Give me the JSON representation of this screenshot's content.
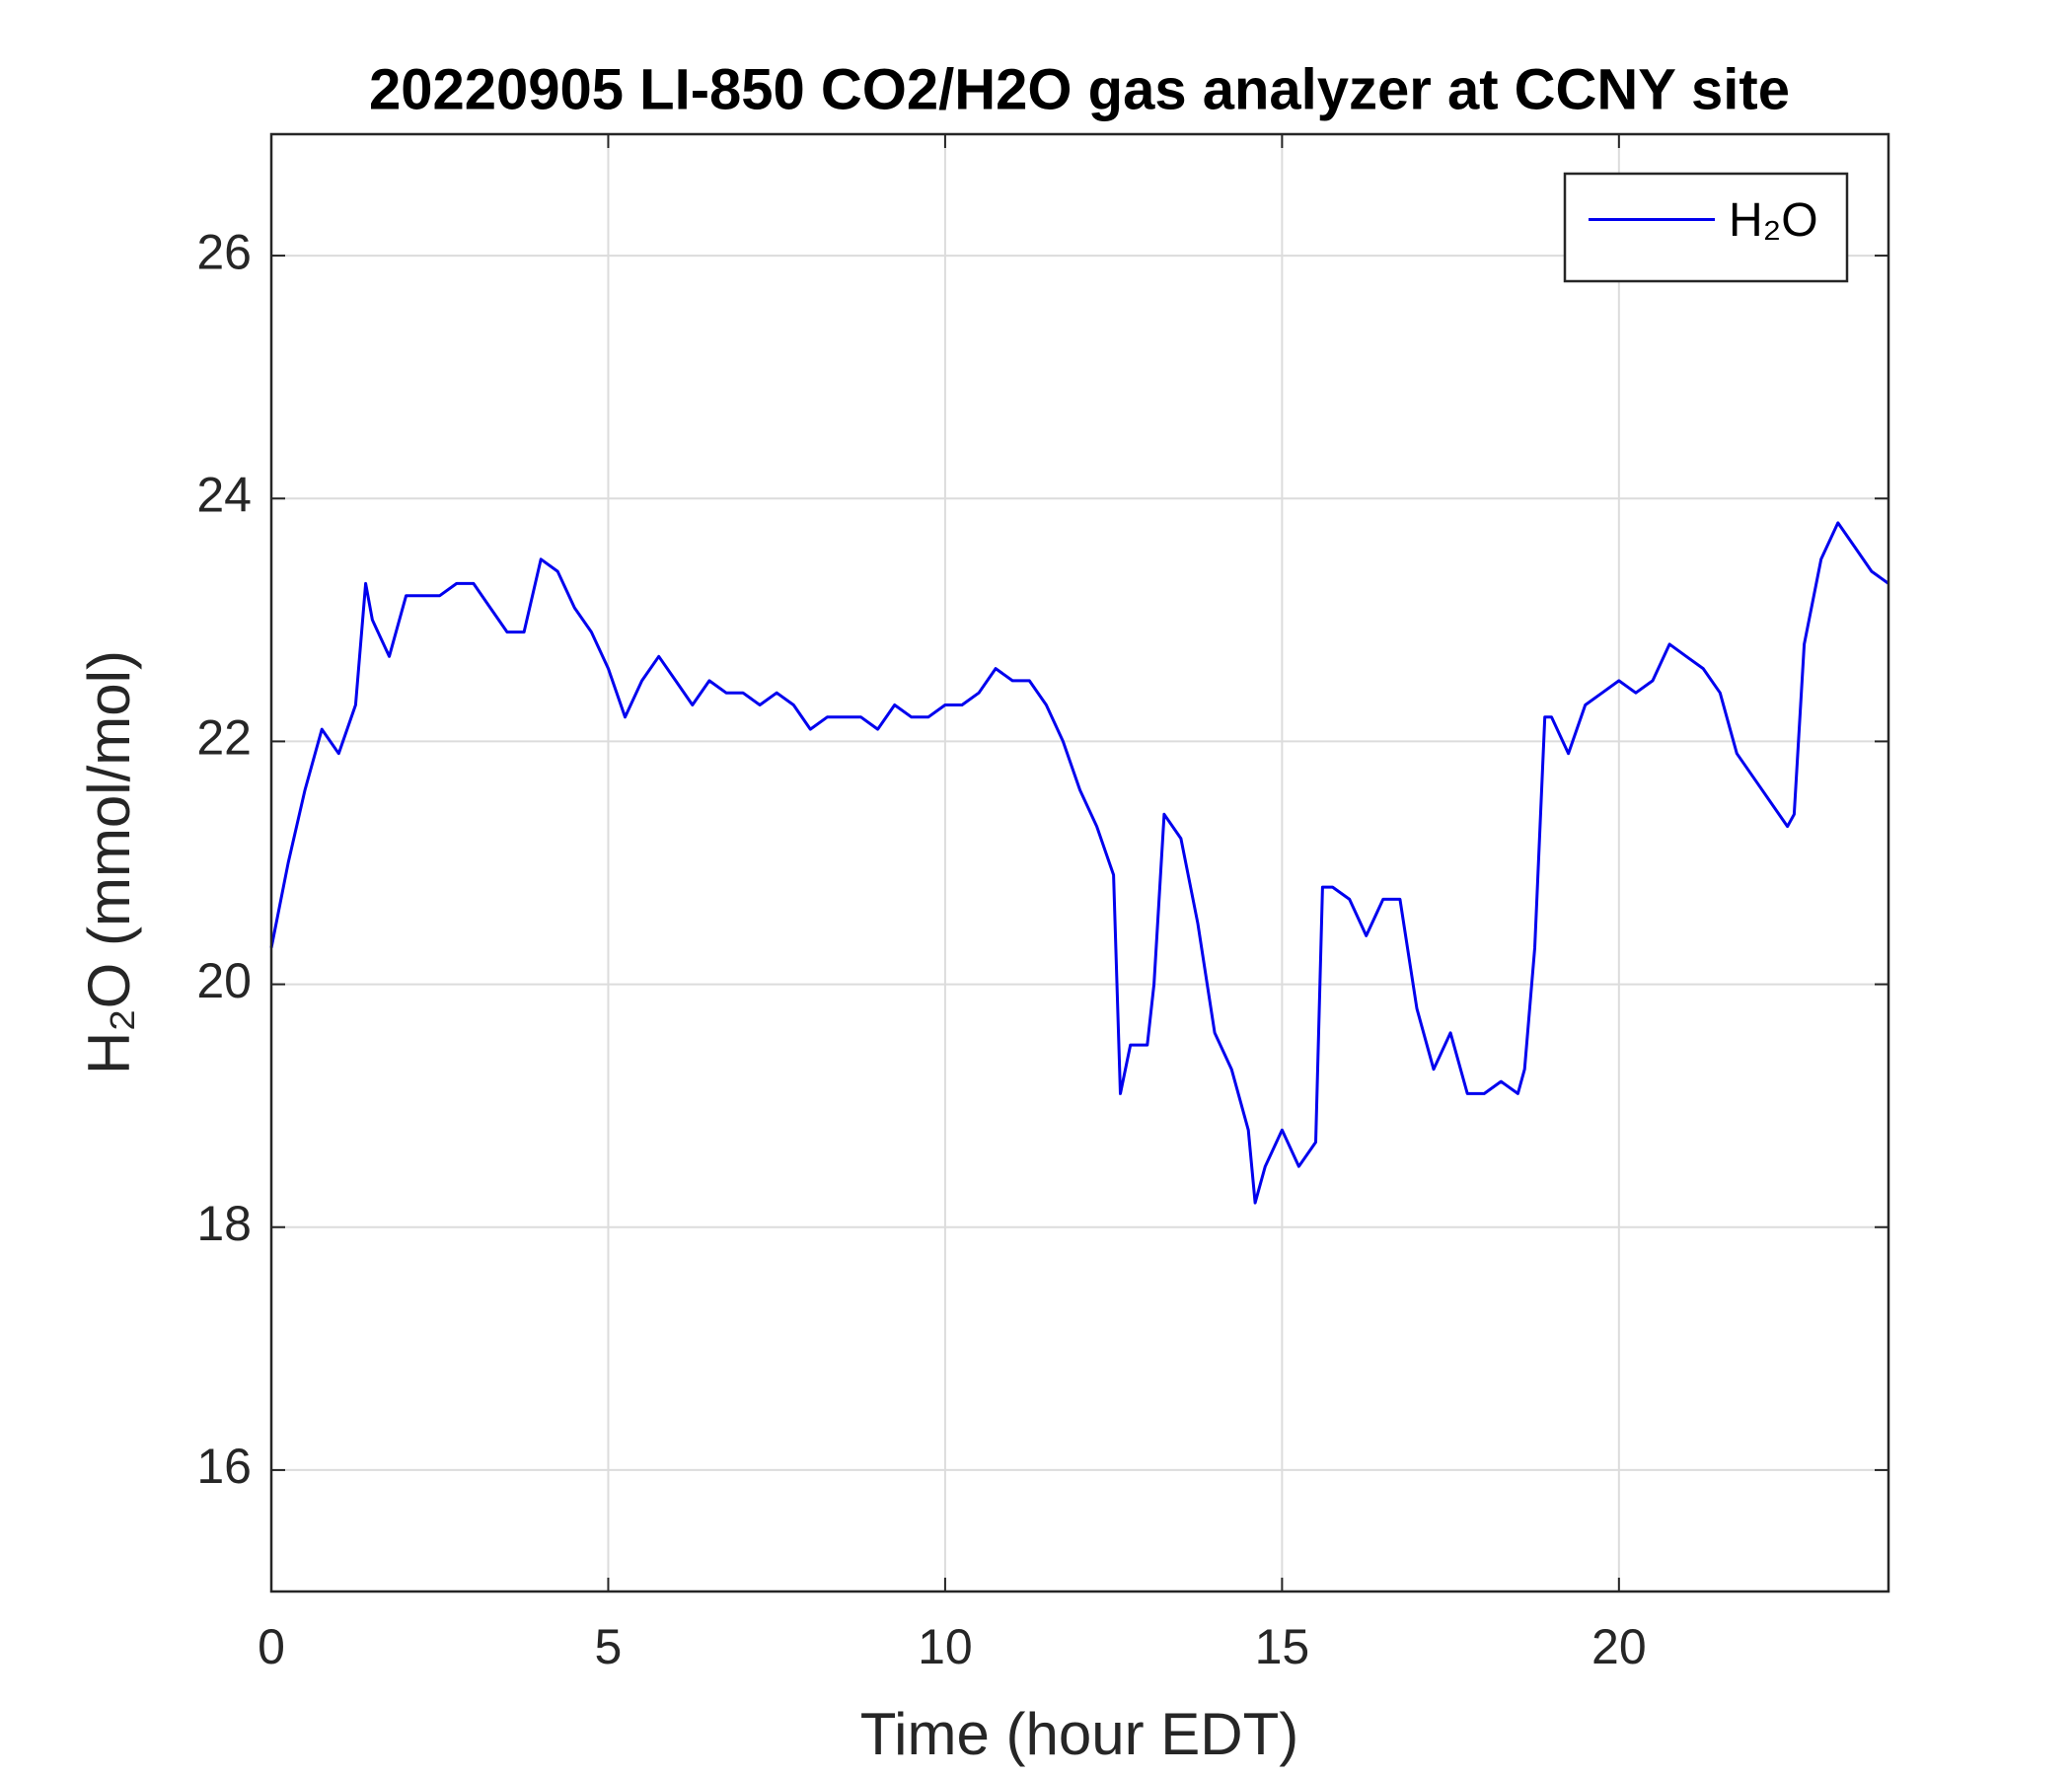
{
  "chart_data": {
    "type": "line",
    "title": "20220905 LI-850 CO2/H2O gas analyzer at CCNY site",
    "xlabel": "Time (hour EDT)",
    "ylabel": "H₂O (mmol/mol)",
    "x": [
      0,
      0.25,
      0.5,
      0.75,
      1.0,
      1.25,
      1.4,
      1.5,
      1.75,
      2.0,
      2.25,
      2.5,
      2.75,
      3.0,
      3.25,
      3.5,
      3.75,
      4.0,
      4.25,
      4.5,
      4.75,
      5.0,
      5.25,
      5.5,
      5.75,
      6.0,
      6.25,
      6.5,
      6.75,
      7.0,
      7.25,
      7.5,
      7.75,
      8.0,
      8.25,
      8.5,
      8.75,
      9.0,
      9.25,
      9.5,
      9.75,
      10.0,
      10.25,
      10.5,
      10.75,
      11.0,
      11.25,
      11.5,
      11.75,
      12.0,
      12.25,
      12.5,
      12.6,
      12.75,
      13.0,
      13.1,
      13.25,
      13.5,
      13.75,
      14.0,
      14.25,
      14.5,
      14.6,
      14.75,
      15.0,
      15.25,
      15.5,
      15.6,
      15.75,
      16.0,
      16.25,
      16.5,
      16.75,
      17.0,
      17.25,
      17.5,
      17.75,
      18.0,
      18.25,
      18.5,
      18.6,
      18.75,
      18.9,
      19.0,
      19.25,
      19.5,
      19.75,
      20.0,
      20.25,
      20.5,
      20.75,
      21.0,
      21.25,
      21.5,
      21.75,
      22.0,
      22.25,
      22.5,
      22.6,
      22.75,
      23.0,
      23.25,
      23.5,
      23.75,
      24.0
    ],
    "series": [
      {
        "name": "H₂O",
        "color": "#0000ee",
        "values": [
          20.3,
          21.0,
          21.6,
          22.1,
          21.9,
          22.3,
          23.3,
          23.0,
          22.7,
          23.2,
          23.2,
          23.2,
          23.3,
          23.3,
          23.1,
          22.9,
          22.9,
          23.5,
          23.4,
          23.1,
          22.9,
          22.6,
          22.2,
          22.5,
          22.7,
          22.5,
          22.3,
          22.5,
          22.4,
          22.4,
          22.3,
          22.4,
          22.3,
          22.1,
          22.2,
          22.2,
          22.2,
          22.1,
          22.3,
          22.2,
          22.2,
          22.3,
          22.3,
          22.4,
          22.6,
          22.5,
          22.5,
          22.3,
          22.0,
          21.6,
          21.3,
          20.9,
          19.1,
          19.5,
          19.5,
          20.0,
          21.4,
          21.2,
          20.5,
          19.6,
          19.3,
          18.8,
          18.2,
          18.5,
          18.8,
          18.5,
          18.7,
          20.8,
          20.8,
          20.7,
          20.4,
          20.7,
          20.7,
          19.8,
          19.3,
          19.6,
          19.1,
          19.1,
          19.2,
          19.1,
          19.3,
          20.3,
          22.2,
          22.2,
          21.9,
          22.3,
          22.4,
          22.5,
          22.4,
          22.5,
          22.8,
          22.7,
          22.6,
          22.4,
          21.9,
          21.7,
          21.5,
          21.3,
          21.4,
          22.8,
          23.5,
          23.8,
          23.6,
          23.4,
          23.3
        ]
      }
    ],
    "xlim": [
      0,
      24
    ],
    "xticks": [
      0,
      5,
      10,
      15,
      20
    ],
    "ylim": [
      15,
      27
    ],
    "yticks": [
      16,
      18,
      20,
      22,
      24,
      26
    ],
    "grid": true,
    "legend": "upper right"
  }
}
